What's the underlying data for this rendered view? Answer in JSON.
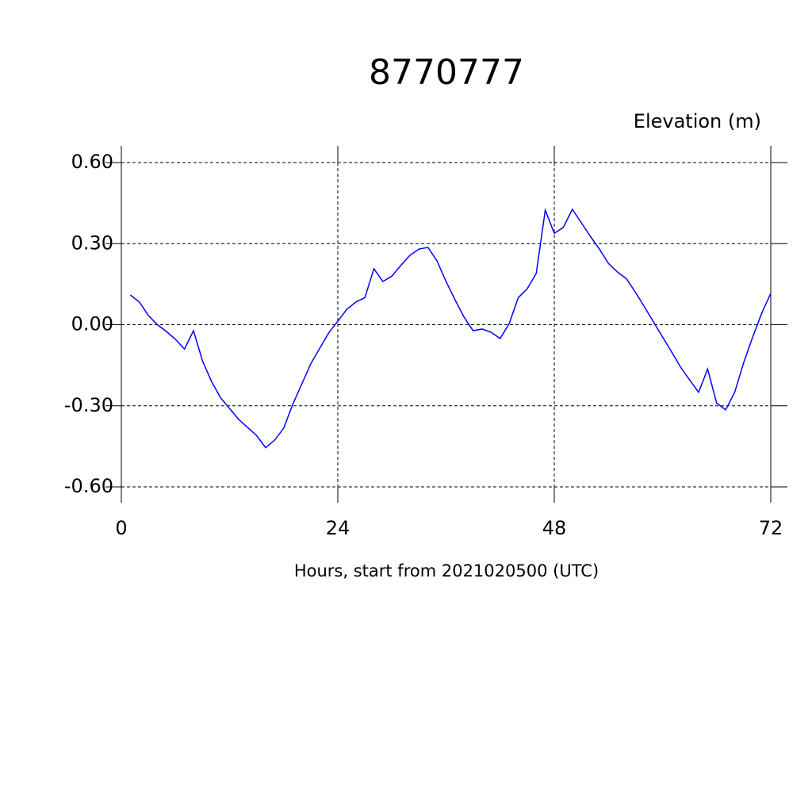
{
  "chart_data": {
    "type": "line",
    "title": "8770777",
    "subtitle": "Elevation (m)",
    "x_label": "Hours, start from 2021020500 (UTC)",
    "x": [
      1,
      2,
      3,
      4,
      5,
      6,
      7,
      8,
      9,
      10,
      11,
      12,
      13,
      14,
      15,
      16,
      17,
      18,
      19,
      20,
      21,
      22,
      23,
      24,
      25,
      26,
      27,
      28,
      29,
      30,
      31,
      32,
      33,
      34,
      35,
      36,
      37,
      38,
      39,
      40,
      41,
      42,
      43,
      44,
      45,
      46,
      47,
      48,
      49,
      50,
      51,
      52,
      53,
      54,
      55,
      56,
      57,
      58,
      59,
      60,
      61,
      62,
      63,
      64,
      65,
      66,
      67,
      68,
      69,
      70,
      71,
      72
    ],
    "series": [
      {
        "color": "#0000ff",
        "values": [
          0.11,
          0.084,
          0.034,
          0.0,
          -0.025,
          -0.054,
          -0.09,
          -0.022,
          -0.134,
          -0.21,
          -0.27,
          -0.31,
          -0.35,
          -0.38,
          -0.41,
          -0.455,
          -0.427,
          -0.383,
          -0.295,
          -0.22,
          -0.145,
          -0.087,
          -0.03,
          0.013,
          0.057,
          0.084,
          0.1,
          0.207,
          0.16,
          0.18,
          0.22,
          0.257,
          0.28,
          0.286,
          0.236,
          0.16,
          0.092,
          0.028,
          -0.022,
          -0.016,
          -0.028,
          -0.051,
          0.004,
          0.1,
          0.133,
          0.19,
          0.424,
          0.338,
          0.36,
          0.427,
          0.377,
          0.327,
          0.28,
          0.227,
          0.195,
          0.17,
          0.12,
          0.066,
          0.01,
          -0.045,
          -0.1,
          -0.157,
          -0.204,
          -0.25,
          -0.164,
          -0.29,
          -0.315,
          -0.25,
          -0.14,
          -0.045,
          0.043,
          0.116
        ]
      }
    ],
    "xlim": [
      0,
      72
    ],
    "xticks": [
      0,
      24,
      48,
      72
    ],
    "ylim": [
      -0.6,
      0.6
    ],
    "yticks": [
      {
        "value": -0.6,
        "label": "-0.60"
      },
      {
        "value": -0.3,
        "label": "-0.30"
      },
      {
        "value": 0,
        "label": "0.00"
      },
      {
        "value": 0.3,
        "label": "0.30"
      },
      {
        "value": 0.6,
        "label": "0.60"
      }
    ],
    "grid": true
  }
}
